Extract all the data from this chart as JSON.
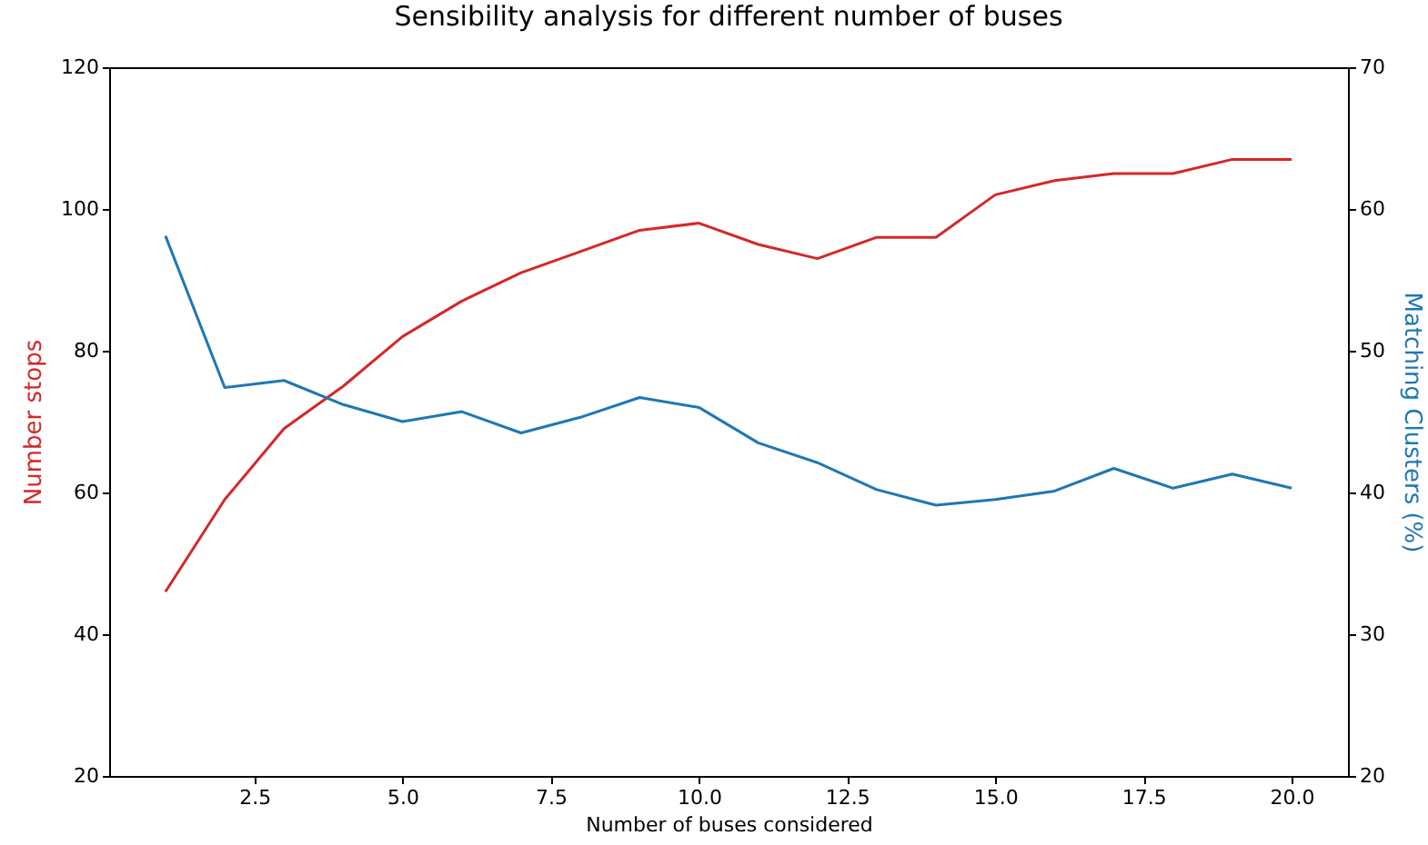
{
  "chart_data": {
    "type": "line",
    "title": "Sensibility analysis for different number of buses",
    "xlabel": "Number of buses considered",
    "ylabel": "Number stops",
    "y2label": "Matching Clusters (%)",
    "x": [
      1,
      2,
      3,
      4,
      5,
      6,
      7,
      8,
      9,
      10,
      11,
      12,
      13,
      14,
      15,
      16,
      17,
      18,
      19,
      20
    ],
    "series": [
      {
        "color": "#d62728",
        "values": [
          46,
          59,
          69,
          75,
          82,
          87,
          91,
          94,
          97,
          98,
          95,
          93,
          96,
          96,
          102,
          104,
          105,
          105,
          107,
          107
        ]
      },
      {
        "color": "#1f77b4",
        "axis": "y2",
        "values": [
          58.1,
          47.4,
          47.9,
          46.2,
          45.0,
          45.7,
          44.2,
          45.3,
          46.7,
          46.0,
          43.5,
          42.1,
          40.2,
          39.1,
          39.5,
          40.1,
          41.7,
          40.3,
          41.3,
          40.3
        ]
      }
    ],
    "xlim": [
      0.05,
      20.95
    ],
    "xticks": [
      {
        "value": 2.5,
        "label": "2.5"
      },
      {
        "value": 5,
        "label": "5.0"
      },
      {
        "value": 7.5,
        "label": "7.5"
      },
      {
        "value": 10,
        "label": "10.0"
      },
      {
        "value": 12.5,
        "label": "12.5"
      },
      {
        "value": 15,
        "label": "15.0"
      },
      {
        "value": 17.5,
        "label": "17.5"
      },
      {
        "value": 20,
        "label": "20.0"
      }
    ],
    "ylim": [
      20,
      120
    ],
    "yticks": [
      20,
      40,
      60,
      80,
      100,
      120
    ],
    "y2lim": [
      20,
      70
    ],
    "y2ticks": [
      20,
      30,
      40,
      50,
      60,
      70
    ],
    "grid": false,
    "marker": "none",
    "line_style": "solid"
  }
}
